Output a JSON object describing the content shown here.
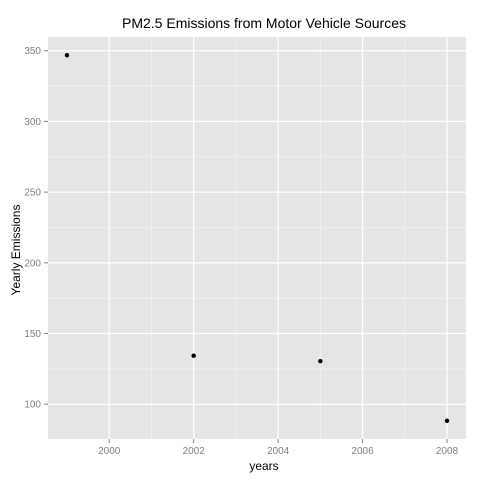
{
  "chart_data": {
    "type": "scatter",
    "title": "PM2.5 Emissions from Motor Vehicle Sources",
    "xlabel": "years",
    "ylabel": "Yearly Emissions",
    "x": [
      1999,
      2002,
      2005,
      2008
    ],
    "y": [
      346.8,
      134.3,
      130.4,
      88.3
    ],
    "xlim": [
      1998.55,
      2008.45
    ],
    "ylim": [
      75.4,
      359.7
    ],
    "x_ticks": [
      2000,
      2002,
      2004,
      2006,
      2008
    ],
    "x_tick_labels": [
      "2000",
      "2002",
      "2004",
      "2006",
      "2008"
    ],
    "y_ticks": [
      100,
      150,
      200,
      250,
      300,
      350
    ],
    "y_tick_labels": [
      "100",
      "150",
      "200",
      "250",
      "300",
      "350"
    ],
    "grid": true,
    "legend": "none",
    "panel_color": "#e5e5e5",
    "gridline_color": "#ffffff",
    "point_color": "#000000"
  }
}
